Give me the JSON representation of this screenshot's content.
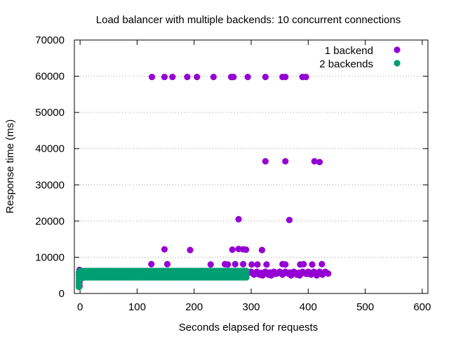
{
  "chart_data": {
    "type": "scatter",
    "title": "Load balancer with multiple backends: 10 concurrent connections",
    "xlabel": "Seconds elapsed for requests",
    "ylabel": "Response time (ms)",
    "xlim": [
      -10,
      610
    ],
    "ylim": [
      0,
      70000
    ],
    "x_ticks": [
      0,
      100,
      200,
      300,
      400,
      500,
      600
    ],
    "y_ticks": [
      0,
      10000,
      20000,
      30000,
      40000,
      50000,
      60000,
      70000
    ],
    "grid": "horizontal dotted",
    "legend": "top-right",
    "series": [
      {
        "name": "1 backend",
        "color": "#9400d3",
        "points": [
          [
            -1,
            2000
          ],
          [
            -1,
            3000
          ],
          [
            -1,
            4000
          ],
          [
            -1,
            4800
          ],
          [
            -1,
            5200
          ],
          [
            -1,
            6000
          ],
          [
            -1,
            6500
          ],
          [
            126,
            59800
          ],
          [
            148,
            59800
          ],
          [
            162,
            59800
          ],
          [
            188,
            59800
          ],
          [
            205,
            59800
          ],
          [
            234,
            59800
          ],
          [
            265,
            59800
          ],
          [
            269,
            59800
          ],
          [
            294,
            59800
          ],
          [
            325,
            59800
          ],
          [
            355,
            59800
          ],
          [
            360,
            59800
          ],
          [
            390,
            59800
          ],
          [
            396,
            59800
          ],
          [
            325,
            36500
          ],
          [
            360,
            36500
          ],
          [
            411,
            36500
          ],
          [
            420,
            36300
          ],
          [
            278,
            20500
          ],
          [
            367,
            20300
          ],
          [
            148,
            12200
          ],
          [
            193,
            12000
          ],
          [
            267,
            12100
          ],
          [
            278,
            12300
          ],
          [
            286,
            12200
          ],
          [
            291,
            12100
          ],
          [
            319,
            12000
          ],
          [
            125,
            8100
          ],
          [
            153,
            8100
          ],
          [
            229,
            8000
          ],
          [
            254,
            8100
          ],
          [
            259,
            8000
          ],
          [
            272,
            8100
          ],
          [
            286,
            8100
          ],
          [
            301,
            8000
          ],
          [
            311,
            8000
          ],
          [
            327,
            8000
          ],
          [
            355,
            8100
          ],
          [
            360,
            8000
          ],
          [
            386,
            8000
          ],
          [
            392,
            8100
          ],
          [
            407,
            8000
          ],
          [
            424,
            8100
          ],
          [
            300,
            6000
          ],
          [
            305,
            5200
          ],
          [
            310,
            6000
          ],
          [
            315,
            5200
          ],
          [
            320,
            5000
          ],
          [
            325,
            6000
          ],
          [
            330,
            5200
          ],
          [
            335,
            5000
          ],
          [
            340,
            6000
          ],
          [
            345,
            5500
          ],
          [
            350,
            6000
          ],
          [
            355,
            5200
          ],
          [
            360,
            6000
          ],
          [
            365,
            5500
          ],
          [
            370,
            5000
          ],
          [
            375,
            6000
          ],
          [
            380,
            5200
          ],
          [
            385,
            5000
          ],
          [
            390,
            6000
          ],
          [
            395,
            5500
          ],
          [
            400,
            6000
          ],
          [
            405,
            5200
          ],
          [
            410,
            6000
          ],
          [
            415,
            5000
          ],
          [
            420,
            6000
          ],
          [
            425,
            5200
          ],
          [
            430,
            6000
          ],
          [
            435,
            5500
          ],
          [
            298,
            5800
          ],
          [
            304,
            5600
          ],
          [
            312,
            5400
          ],
          [
            318,
            5700
          ],
          [
            326,
            5500
          ],
          [
            333,
            5800
          ],
          [
            342,
            5400
          ],
          [
            348,
            5700
          ],
          [
            357,
            5500
          ],
          [
            368,
            5800
          ],
          [
            377,
            5500
          ],
          [
            383,
            5700
          ],
          [
            398,
            5400
          ],
          [
            408,
            5800
          ],
          [
            418,
            5500
          ],
          [
            428,
            5700
          ]
        ]
      },
      {
        "name": "2 backends",
        "color": "#009e73",
        "dense_band": {
          "x": [
            0,
            295
          ],
          "y": [
            4000,
            6200
          ]
        },
        "points": [
          [
            -2,
            1800
          ],
          [
            -2,
            2600
          ],
          [
            -2,
            3400
          ],
          [
            -2,
            4200
          ],
          [
            -2,
            5000
          ],
          [
            -2,
            5800
          ],
          [
            0,
            5600
          ],
          [
            0,
            4400
          ],
          [
            2,
            6000
          ],
          [
            3,
            4200
          ]
        ]
      }
    ]
  }
}
